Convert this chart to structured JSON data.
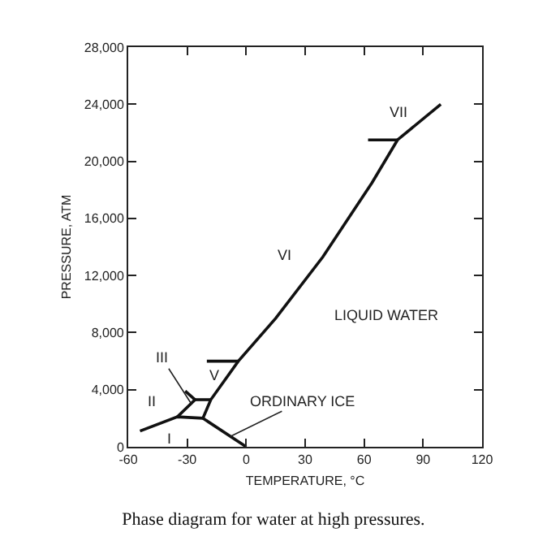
{
  "chart_data": {
    "type": "line",
    "title": "Phase diagram for water at high pressures.",
    "xlabel": "TEMPERATURE, °C",
    "ylabel": "PRESSURE, ATM",
    "xlim": [
      -60,
      120
    ],
    "xticks": [
      -60,
      -30,
      0,
      30,
      60,
      90,
      120
    ],
    "ylim": [
      0,
      28000
    ],
    "yticks": [
      0,
      {
        "value": 4000,
        "label": "4,000"
      },
      {
        "value": 8000,
        "label": "8,000"
      },
      {
        "value": 12000,
        "label": "12,000"
      },
      {
        "value": 16000,
        "label": "16,000"
      },
      {
        "value": 20000,
        "label": "20,000"
      },
      {
        "value": 24000,
        "label": "24,000"
      },
      {
        "value": 28000,
        "label": "28,000"
      }
    ],
    "grid": false,
    "marker": "none",
    "line_style": "solid",
    "series": [
      {
        "color": "#111111",
        "x": [
          0,
          -22,
          -18,
          -4,
          15,
          39,
          64,
          77,
          99
        ],
        "values": [
          0,
          2000,
          3300,
          6000,
          9000,
          13300,
          18500,
          21500,
          24000
        ]
      },
      {
        "color": "#111111",
        "x": [
          -54,
          -35,
          -22
        ],
        "values": [
          1100,
          2100,
          2000
        ]
      },
      {
        "color": "#111111",
        "x": [
          -35,
          -26,
          -31
        ],
        "values": [
          2100,
          3300,
          3900
        ]
      },
      {
        "color": "#111111",
        "x": [
          -26,
          -18
        ],
        "values": [
          3300,
          3300
        ]
      },
      {
        "color": "#111111",
        "x": [
          -20,
          -4
        ],
        "values": [
          6000,
          6000
        ]
      },
      {
        "color": "#111111",
        "x": [
          62,
          77
        ],
        "values": [
          21500,
          21500
        ]
      }
    ],
    "annotations": [
      "VII",
      "VI",
      "LIQUID WATER",
      "V",
      {
        "text": "III",
        "x": -28,
        "y": 3030
      },
      "II",
      "I",
      {
        "text": "ORDINARY ICE",
        "x": -8,
        "y": 730
      }
    ]
  }
}
